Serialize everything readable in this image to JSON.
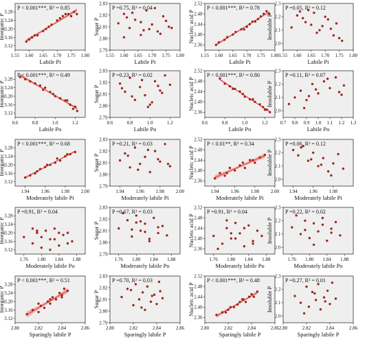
{
  "figure": {
    "panel_background": "#efefef",
    "point_color": "#a0271d",
    "fit_color": "#e0403a",
    "band_color": "#f29a96",
    "ylabels": [
      "Inorganic P",
      "Sugar P",
      "Nucleic acid P",
      "Insoluble P"
    ],
    "xlabels": [
      "Labile Pi",
      "Labile Po",
      "Moderately labile Pi",
      "Moderately labile Po",
      "Sparingly labile P"
    ]
  },
  "chart_data": [
    {
      "type": "scatter",
      "xlabel": "Labile Pi",
      "ylabel": "Inorganic P",
      "stat": "P < 0.001***, R² = 0.85",
      "xlim": [
        1.55,
        1.8
      ],
      "xticks": [
        "1.55",
        "1.60",
        "1.65",
        "1.70",
        "1.75",
        "1.80"
      ],
      "ylim": [
        3.1,
        3.32
      ],
      "yticks": [
        "3.12",
        "3.16",
        "3.20",
        "3.24",
        "3.28"
      ],
      "fit": true,
      "x": [
        1.59,
        1.6,
        1.61,
        1.62,
        1.63,
        1.65,
        1.66,
        1.67,
        1.68,
        1.7,
        1.71,
        1.72,
        1.73,
        1.74,
        1.76,
        1.77,
        1.75
      ],
      "y": [
        3.14,
        3.15,
        3.16,
        3.17,
        3.17,
        3.19,
        3.2,
        3.21,
        3.22,
        3.24,
        3.25,
        3.26,
        3.27,
        3.27,
        3.28,
        3.27,
        3.26
      ]
    },
    {
      "type": "scatter",
      "xlabel": "Labile Pi",
      "ylabel": "Sugar P",
      "stat": "P =0.75, R² = 0.04",
      "xlim": [
        1.55,
        1.8
      ],
      "xticks": [
        "1.55",
        "1.60",
        "1.65",
        "1.70",
        "1.75",
        "1.80"
      ],
      "ylim": [
        2.79,
        2.83
      ],
      "yticks": [
        "2.79",
        "2.80",
        "2.81",
        "2.82",
        "2.83"
      ],
      "fit": false,
      "x": [
        1.58,
        1.6,
        1.62,
        1.64,
        1.66,
        1.68,
        1.7,
        1.72,
        1.74,
        1.76,
        1.6,
        1.63,
        1.66,
        1.69,
        1.71,
        1.73,
        1.75,
        1.77,
        1.61,
        1.67
      ],
      "y": [
        2.813,
        2.821,
        2.809,
        2.816,
        2.803,
        2.824,
        2.812,
        2.806,
        2.819,
        2.81,
        2.801,
        2.822,
        2.814,
        2.808,
        2.826,
        2.804,
        2.815,
        2.809,
        2.818,
        2.807
      ]
    },
    {
      "type": "scatter",
      "xlabel": "Labile Pi",
      "ylabel": "Nucleic acid P",
      "stat": "P < 0.001***, R² = 0.78",
      "xlim": [
        1.55,
        1.8
      ],
      "xticks": [
        "1.55",
        "1.60",
        "1.65",
        "1.70",
        "1.75",
        "1.80"
      ],
      "ylim": [
        2.34,
        2.52
      ],
      "yticks": [
        "2.36",
        "2.40",
        "2.44",
        "2.48",
        "2.52"
      ],
      "fit": true,
      "x": [
        1.59,
        1.6,
        1.62,
        1.63,
        1.65,
        1.66,
        1.68,
        1.69,
        1.7,
        1.71,
        1.72,
        1.73,
        1.74,
        1.75,
        1.76,
        1.77,
        1.78
      ],
      "y": [
        2.36,
        2.37,
        2.38,
        2.39,
        2.4,
        2.41,
        2.42,
        2.42,
        2.43,
        2.44,
        2.45,
        2.45,
        2.46,
        2.47,
        2.48,
        2.49,
        2.48
      ]
    },
    {
      "type": "scatter",
      "xlabel": "Labile Pi",
      "ylabel": "Insoluble P",
      "stat": "P =0.05, R² = 0.12",
      "xlim": [
        1.55,
        1.8
      ],
      "xticks": [
        "1.55",
        "1.60",
        "1.65",
        "1.70",
        "1.75",
        "1.80"
      ],
      "ylim": [
        1.95,
        2.3
      ],
      "yticks": [
        "2.0",
        "2.1",
        "2.2",
        "2.3"
      ],
      "fit": false,
      "x": [
        1.58,
        1.6,
        1.61,
        1.63,
        1.65,
        1.66,
        1.68,
        1.7,
        1.71,
        1.72,
        1.73,
        1.74,
        1.75,
        1.76,
        1.64,
        1.69,
        1.62,
        1.67
      ],
      "y": [
        2.12,
        2.21,
        2.24,
        2.16,
        2.14,
        2.23,
        2.1,
        2.2,
        2.18,
        2.11,
        2.06,
        2.15,
        2.04,
        2.02,
        2.25,
        2.13,
        2.19,
        2.08
      ]
    },
    {
      "type": "scatter",
      "xlabel": "Labile Po",
      "ylabel": "Inorganic P",
      "stat": "P < 0.001***, R² = 0.49",
      "xlim": [
        0.6,
        1.3
      ],
      "xticks": [
        "0.6",
        "0.8",
        "1.0",
        "1.2"
      ],
      "ylim": [
        3.1,
        3.32
      ],
      "yticks": [
        "3.12",
        "3.16",
        "3.20",
        "3.24",
        "3.28"
      ],
      "fit": true,
      "x": [
        0.65,
        0.7,
        0.75,
        0.8,
        0.85,
        0.9,
        0.95,
        1.0,
        1.05,
        1.1,
        1.15,
        1.2,
        1.22,
        1.12,
        0.88,
        0.98,
        1.18
      ],
      "y": [
        3.29,
        3.28,
        3.27,
        3.26,
        3.25,
        3.24,
        3.22,
        3.2,
        3.19,
        3.18,
        3.16,
        3.15,
        3.13,
        3.18,
        3.23,
        3.21,
        3.14
      ]
    },
    {
      "type": "scatter",
      "xlabel": "Labile Po",
      "ylabel": "Sugar P",
      "stat": "P =0.23, R² = 0.02",
      "xlim": [
        0.6,
        1.3
      ],
      "xticks": [
        "0.6",
        "0.8",
        "1.0",
        "1.2"
      ],
      "ylim": [
        2.79,
        2.83
      ],
      "yticks": [
        "2.79",
        "2.80",
        "2.81",
        "2.82",
        "2.83"
      ],
      "fit": false,
      "x": [
        0.7,
        0.75,
        0.8,
        0.85,
        0.9,
        0.95,
        1.0,
        1.05,
        1.1,
        1.15,
        1.2,
        0.72,
        0.82,
        0.92,
        1.02,
        1.12,
        0.98,
        1.08
      ],
      "y": [
        2.819,
        2.812,
        2.824,
        2.805,
        2.816,
        2.809,
        2.801,
        2.821,
        2.813,
        2.826,
        2.818,
        2.815,
        2.808,
        2.822,
        2.803,
        2.811,
        2.799,
        2.817
      ]
    },
    {
      "type": "scatter",
      "xlabel": "Labile Po",
      "ylabel": "Nucleic acid P",
      "stat": "P < 0.001***, R² = 0.80",
      "xlim": [
        0.6,
        1.3
      ],
      "xticks": [
        "0.6",
        "0.8",
        "1.0",
        "1.2"
      ],
      "ylim": [
        2.34,
        2.52
      ],
      "yticks": [
        "2.36",
        "2.40",
        "2.44",
        "2.48",
        "2.52"
      ],
      "fit": true,
      "x": [
        0.75,
        0.8,
        0.85,
        0.9,
        0.95,
        1.0,
        1.05,
        1.1,
        1.15,
        1.2,
        1.25,
        0.88,
        0.98,
        1.08,
        1.18,
        1.22
      ],
      "y": [
        2.49,
        2.47,
        2.46,
        2.45,
        2.44,
        2.42,
        2.41,
        2.4,
        2.39,
        2.37,
        2.36,
        2.45,
        2.43,
        2.41,
        2.38,
        2.37
      ]
    },
    {
      "type": "scatter",
      "xlabel": "Labile Po",
      "ylabel": "Insoluble P",
      "stat": "P =0.11, R² = 0.07",
      "xlim": [
        0.7,
        1.3
      ],
      "xticks": [
        "0.7",
        "0.8",
        "0.9",
        "1.0",
        "1.1",
        "1.2",
        "1.3"
      ],
      "ylim": [
        1.95,
        2.3
      ],
      "yticks": [
        "2.0",
        "2.1",
        "2.2",
        "2.3"
      ],
      "fit": false,
      "x": [
        0.75,
        0.8,
        0.85,
        0.9,
        0.95,
        1.0,
        1.05,
        1.1,
        1.15,
        1.2,
        1.22,
        0.88,
        0.98,
        1.08,
        1.18,
        0.92
      ],
      "y": [
        2.05,
        2.1,
        2.15,
        2.08,
        2.2,
        2.13,
        2.22,
        2.17,
        2.25,
        2.12,
        2.19,
        2.02,
        2.16,
        2.24,
        2.14,
        2.11
      ]
    },
    {
      "type": "scatter",
      "xlabel": "Moderately labile Pi",
      "ylabel": "Inorganic P",
      "stat": "P < 0.001***, R² = 0.68",
      "xlim": [
        1.93,
        2.0
      ],
      "xticks": [
        "1.94",
        "1.96",
        "1.98",
        "2.00"
      ],
      "ylim": [
        3.1,
        3.32
      ],
      "yticks": [
        "3.12",
        "3.16",
        "3.20",
        "3.24",
        "3.28"
      ],
      "fit": true,
      "x": [
        1.94,
        1.945,
        1.95,
        1.955,
        1.96,
        1.965,
        1.97,
        1.975,
        1.98,
        1.985,
        1.99,
        1.952,
        1.962,
        1.972,
        1.982
      ],
      "y": [
        3.14,
        3.15,
        3.16,
        3.18,
        3.19,
        3.2,
        3.21,
        3.22,
        3.24,
        3.25,
        3.26,
        3.17,
        3.2,
        3.23,
        3.25
      ]
    },
    {
      "type": "scatter",
      "xlabel": "Moderately labile Pi",
      "ylabel": "Sugar P",
      "stat": "P =0.21, R² = 0.03",
      "xlim": [
        1.93,
        2.0
      ],
      "xticks": [
        "1.94",
        "1.96",
        "1.98",
        "2.00"
      ],
      "ylim": [
        2.79,
        2.83
      ],
      "yticks": [
        "2.79",
        "2.80",
        "2.81",
        "2.82",
        "2.83"
      ],
      "fit": false,
      "x": [
        1.94,
        1.945,
        1.95,
        1.955,
        1.96,
        1.965,
        1.97,
        1.975,
        1.98,
        1.985,
        1.99,
        1.948,
        1.958,
        1.968,
        1.978,
        1.988
      ],
      "y": [
        2.812,
        2.818,
        2.806,
        2.823,
        2.809,
        2.815,
        2.802,
        2.82,
        2.811,
        2.826,
        2.807,
        2.816,
        2.804,
        2.821,
        2.813,
        2.809
      ]
    },
    {
      "type": "scatter",
      "xlabel": "Moderately labile Pi",
      "ylabel": "Nucleic acid P",
      "stat": "P < 0.01**, R² = 0.34",
      "xlim": [
        1.93,
        2.0
      ],
      "xticks": [
        "1.94",
        "1.96",
        "1.98",
        "2.00"
      ],
      "ylim": [
        2.34,
        2.52
      ],
      "yticks": [
        "2.36",
        "2.40",
        "2.44",
        "2.48",
        "2.52"
      ],
      "fit": true,
      "x": [
        1.94,
        1.945,
        1.95,
        1.955,
        1.96,
        1.965,
        1.97,
        1.975,
        1.98,
        1.985,
        1.99,
        1.952,
        1.968,
        1.978
      ],
      "y": [
        2.37,
        2.39,
        2.38,
        2.41,
        2.4,
        2.42,
        2.41,
        2.44,
        2.43,
        2.45,
        2.46,
        2.39,
        2.43,
        2.44
      ]
    },
    {
      "type": "scatter",
      "xlabel": "Moderately labile Pi",
      "ylabel": "Insoluble P",
      "stat": "P =0.06, R² = 0.12",
      "xlim": [
        1.93,
        2.0
      ],
      "xticks": [
        "1.94",
        "1.96",
        "1.98"
      ],
      "ylim": [
        1.95,
        2.3
      ],
      "yticks": [
        "2.0",
        "2.1",
        "2.2",
        "2.3"
      ],
      "fit": false,
      "x": [
        1.94,
        1.945,
        1.95,
        1.955,
        1.96,
        1.965,
        1.97,
        1.975,
        1.98,
        1.985,
        1.99,
        1.948,
        1.958,
        1.968,
        1.978
      ],
      "y": [
        2.22,
        2.18,
        2.25,
        2.14,
        2.2,
        2.1,
        2.16,
        2.06,
        2.12,
        2.19,
        2.08,
        2.24,
        2.15,
        2.11,
        2.03
      ]
    },
    {
      "type": "scatter",
      "xlabel": "Moderately labile Po",
      "ylabel": "Inorganic P",
      "stat": "P =0.91, R² = 0.04",
      "xlim": [
        1.74,
        1.9
      ],
      "xticks": [
        "1.76",
        "1.80",
        "1.84",
        "1.88"
      ],
      "ylim": [
        3.1,
        3.32
      ],
      "yticks": [
        "3.12",
        "3.16",
        "3.20",
        "3.24",
        "3.28"
      ],
      "fit": false,
      "x": [
        1.76,
        1.78,
        1.79,
        1.8,
        1.81,
        1.82,
        1.83,
        1.84,
        1.85,
        1.86,
        1.87,
        1.78,
        1.8,
        1.82,
        1.84,
        1.86,
        1.79,
        1.83
      ],
      "y": [
        3.18,
        3.15,
        3.2,
        3.13,
        3.21,
        3.17,
        3.22,
        3.14,
        3.19,
        3.2,
        3.16,
        3.22,
        3.18,
        3.12,
        3.2,
        3.15,
        3.21,
        3.17
      ]
    },
    {
      "type": "scatter",
      "xlabel": "Moderately labile Po",
      "ylabel": "Sugar P",
      "stat": "P =0.67, R² = 0.03",
      "xlim": [
        1.74,
        1.9
      ],
      "xticks": [
        "1.76",
        "1.80",
        "1.84",
        "1.88"
      ],
      "ylim": [
        2.79,
        2.83
      ],
      "yticks": [
        "2.79",
        "2.80",
        "2.81",
        "2.82",
        "2.83"
      ],
      "fit": false,
      "x": [
        1.76,
        1.78,
        1.79,
        1.8,
        1.81,
        1.82,
        1.83,
        1.84,
        1.85,
        1.86,
        1.87,
        1.77,
        1.79,
        1.81,
        1.83,
        1.85,
        1.8,
        1.82
      ],
      "y": [
        2.812,
        2.819,
        2.805,
        2.823,
        2.81,
        2.816,
        2.801,
        2.821,
        2.808,
        2.814,
        2.806,
        2.825,
        2.811,
        2.818,
        2.803,
        2.813,
        2.817,
        2.809
      ]
    },
    {
      "type": "scatter",
      "xlabel": "Moderately labile Po",
      "ylabel": "Nucleic acid P",
      "stat": "P =0.91, R² = 0.04",
      "xlim": [
        1.74,
        1.9
      ],
      "xticks": [
        "1.76",
        "1.80",
        "1.84",
        "1.88"
      ],
      "ylim": [
        2.34,
        2.52
      ],
      "yticks": [
        "2.36",
        "2.40",
        "2.44",
        "2.48",
        "2.52"
      ],
      "fit": false,
      "x": [
        1.76,
        1.78,
        1.79,
        1.8,
        1.81,
        1.82,
        1.83,
        1.84,
        1.85,
        1.86,
        1.87,
        1.77,
        1.79,
        1.81,
        1.83,
        1.85,
        1.8
      ],
      "y": [
        2.41,
        2.38,
        2.44,
        2.4,
        2.46,
        2.42,
        2.37,
        2.45,
        2.39,
        2.43,
        2.41,
        2.36,
        2.47,
        2.4,
        2.44,
        2.38,
        2.42
      ]
    },
    {
      "type": "scatter",
      "xlabel": "Moderately labile Po",
      "ylabel": "Insoluble P",
      "stat": "P =0.22, R² = 0.02",
      "xlim": [
        1.74,
        1.9
      ],
      "xticks": [
        "1.76",
        "1.80",
        "1.84",
        "1.88"
      ],
      "ylim": [
        1.95,
        2.3
      ],
      "yticks": [
        "2.0",
        "2.1",
        "2.2",
        "2.3"
      ],
      "fit": false,
      "x": [
        1.76,
        1.78,
        1.79,
        1.8,
        1.81,
        1.82,
        1.83,
        1.84,
        1.85,
        1.86,
        1.87,
        1.77,
        1.79,
        1.81,
        1.83,
        1.85
      ],
      "y": [
        2.15,
        2.1,
        2.2,
        2.07,
        2.18,
        2.12,
        2.22,
        2.05,
        2.14,
        2.19,
        2.09,
        2.24,
        2.13,
        2.02,
        2.17,
        2.11
      ]
    },
    {
      "type": "scatter",
      "xlabel": "Sparingly labile P",
      "ylabel": "Inorganic P",
      "stat": "P < 0.001***, R² = 0.51",
      "xlim": [
        2.8,
        2.86
      ],
      "xticks": [
        "2.80",
        "2.82",
        "2.84",
        "2.86"
      ],
      "ylim": [
        3.1,
        3.32
      ],
      "yticks": [
        "3.12",
        "3.16",
        "3.20",
        "3.24",
        "3.28"
      ],
      "fit": true,
      "x": [
        2.81,
        2.815,
        2.82,
        2.822,
        2.825,
        2.828,
        2.83,
        2.832,
        2.835,
        2.838,
        2.84,
        2.842,
        2.845,
        2.82,
        2.83,
        2.84
      ],
      "y": [
        3.14,
        3.16,
        3.15,
        3.18,
        3.17,
        3.2,
        3.19,
        3.22,
        3.21,
        3.24,
        3.23,
        3.26,
        3.25,
        3.19,
        3.21,
        3.22
      ]
    },
    {
      "type": "scatter",
      "xlabel": "Sparingly labile P",
      "ylabel": "Sugar P",
      "stat": "P =0.70, R² = 0.03",
      "xlim": [
        2.8,
        2.86
      ],
      "xticks": [
        "2.80",
        "2.82",
        "2.84",
        "2.86"
      ],
      "ylim": [
        2.79,
        2.83
      ],
      "yticks": [
        "2.79",
        "2.80",
        "2.81",
        "2.82",
        "2.83"
      ],
      "fit": false,
      "x": [
        2.81,
        2.815,
        2.82,
        2.822,
        2.825,
        2.828,
        2.83,
        2.832,
        2.835,
        2.838,
        2.84,
        2.842,
        2.845,
        2.818,
        2.827,
        2.836,
        2.843
      ],
      "y": [
        2.812,
        2.819,
        2.805,
        2.823,
        2.81,
        2.816,
        2.801,
        2.821,
        2.808,
        2.814,
        2.806,
        2.825,
        2.811,
        2.818,
        2.803,
        2.813,
        2.817
      ]
    },
    {
      "type": "scatter",
      "xlabel": "Sparingly labile P",
      "ylabel": "Nucleic acid P",
      "stat": "P < 0.001***, R² = 0.48",
      "xlim": [
        2.8,
        2.86
      ],
      "xticks": [
        "2.80",
        "2.82",
        "2.84",
        "2.86"
      ],
      "ylim": [
        2.34,
        2.52
      ],
      "yticks": [
        "2.36",
        "2.40",
        "2.44",
        "2.48",
        "2.52"
      ],
      "fit": true,
      "x": [
        2.81,
        2.815,
        2.82,
        2.822,
        2.825,
        2.828,
        2.83,
        2.832,
        2.835,
        2.838,
        2.84,
        2.842,
        2.845,
        2.818,
        2.833
      ],
      "y": [
        2.37,
        2.38,
        2.39,
        2.4,
        2.4,
        2.41,
        2.42,
        2.43,
        2.42,
        2.44,
        2.45,
        2.44,
        2.46,
        2.38,
        2.43
      ]
    },
    {
      "type": "scatter",
      "xlabel": "Sparingly labile P",
      "ylabel": "Insoluble P",
      "stat": "P =0.27, R² = 0.01",
      "xlim": [
        2.8,
        2.86
      ],
      "xticks": [
        "2.80",
        "2.82",
        "2.84",
        "2.86"
      ],
      "ylim": [
        1.95,
        2.3
      ],
      "yticks": [
        "2.0",
        "2.1",
        "2.2",
        "2.3"
      ],
      "fit": false,
      "x": [
        2.81,
        2.815,
        2.82,
        2.822,
        2.825,
        2.828,
        2.83,
        2.832,
        2.835,
        2.838,
        2.84,
        2.842,
        2.845,
        2.818,
        2.827,
        2.836
      ],
      "y": [
        2.15,
        2.1,
        2.22,
        2.07,
        2.18,
        2.12,
        2.24,
        2.05,
        2.14,
        2.19,
        2.09,
        2.25,
        2.13,
        2.02,
        2.17,
        2.11
      ]
    }
  ]
}
